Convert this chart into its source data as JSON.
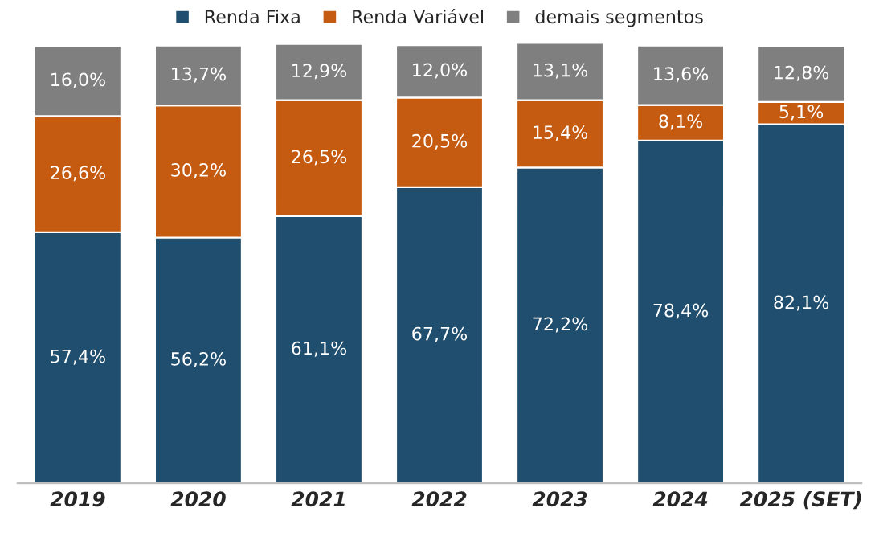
{
  "chart_data": {
    "type": "bar",
    "stacked": true,
    "legend": "top",
    "grid": false,
    "tick_labels": "x",
    "categories": [
      "2019",
      "2020",
      "2021",
      "2022",
      "2023",
      "2024",
      "2025 (SET)"
    ],
    "series": [
      {
        "name": "Renda Fixa",
        "color": "#1f4e6e",
        "values": [
          57.4,
          56.2,
          61.1,
          67.7,
          72.2,
          78.4,
          82.1
        ],
        "value_labels": [
          "57,4%",
          "56,2%",
          "61,1%",
          "67,7%",
          "72,2%",
          "78,4%",
          "82,1%"
        ]
      },
      {
        "name": "Renda Variável",
        "color": "#c55a11",
        "values": [
          26.6,
          30.2,
          26.5,
          20.5,
          15.4,
          8.1,
          5.1
        ],
        "value_labels": [
          "26,6%",
          "30,2%",
          "26,5%",
          "20,5%",
          "15,4%",
          "8,1%",
          "5,1%"
        ]
      },
      {
        "name": "demais segmentos",
        "color": "#7f7f7f",
        "values": [
          16.0,
          13.7,
          12.9,
          12.0,
          13.1,
          13.6,
          12.8
        ],
        "value_labels": [
          "16,0%",
          "13,7%",
          "12,9%",
          "12,0%",
          "13,1%",
          "13,6%",
          "12,8%"
        ]
      }
    ]
  }
}
